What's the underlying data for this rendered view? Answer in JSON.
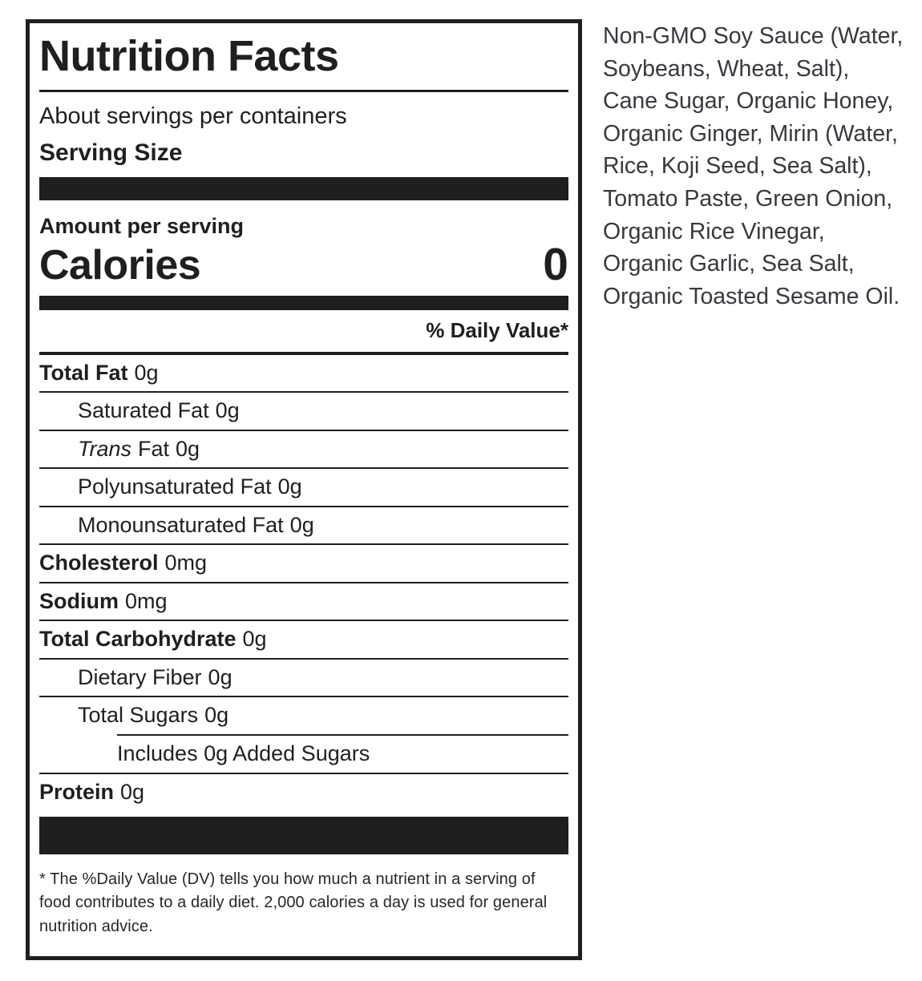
{
  "label": {
    "title": "Nutrition Facts",
    "servings_line": "About servings per containers",
    "serving_size_label": "Serving Size",
    "amount_per_serving": "Amount per serving",
    "calories_label": "Calories",
    "calories_value": "0",
    "daily_value_header": "% Daily Value*",
    "rows": [
      {
        "name": "Total Fat",
        "amount": "0g"
      },
      {
        "name": "Saturated Fat",
        "amount": "0g"
      },
      {
        "name": "Trans",
        "name2": "Fat",
        "amount": "0g"
      },
      {
        "name": "Polyunsaturated Fat",
        "amount": "0g"
      },
      {
        "name": "Monounsaturated Fat",
        "amount": "0g"
      },
      {
        "name": "Cholesterol",
        "amount": "0mg"
      },
      {
        "name": "Sodium",
        "amount": "0mg"
      },
      {
        "name": "Total Carbohydrate",
        "amount": "0g"
      },
      {
        "name": "Dietary Fiber",
        "amount": "0g"
      },
      {
        "name": "Total Sugars",
        "amount": "0g"
      },
      {
        "name": "Includes 0g Added Sugars",
        "amount": ""
      },
      {
        "name": "Protein",
        "amount": "0g"
      }
    ],
    "footnote": "* The %Daily Value (DV) tells you how much a nutrient in a serving of food contributes to a daily diet. 2,000 calories a day is used for general nutrition advice."
  },
  "ingredients": {
    "text": "Non-GMO Soy Sauce (Water, Soybeans, Wheat, Salt), Cane Sugar, Organic Honey, Organic Ginger, Mirin (Water, Rice, Koji Seed, Sea Salt), Tomato Paste, Green Onion, Organic Rice Vinegar, Organic Garlic, Sea Salt, Organic Toasted Sesame Oil."
  },
  "colors": {
    "label_text": "#1e1f21",
    "bar": "#1e1f21",
    "ingredients_text": "#37393e",
    "background": "#ffffff"
  }
}
